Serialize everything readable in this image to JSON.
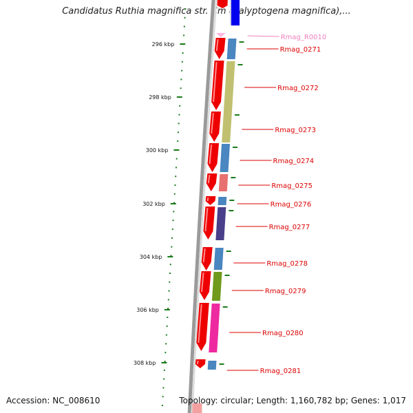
{
  "title": "Candidatus Ruthia magnifica str. Cm (Calyptogena magnifica),...",
  "footer": {
    "accession": "Accession: NC_008610",
    "info": "Topology: circular; Length: 1,160,782 bp; Genes: 1,017"
  },
  "colors": {
    "forward_arrow": "#ee0000",
    "rna_arrow": "#ffb6e0",
    "label_red": "#dd0000",
    "label_pink": "#f07fc0",
    "tick_green": "#1a7a1a",
    "backbone": "#888888"
  },
  "ruler_ticks": [
    {
      "label": "296 kbp"
    },
    {
      "label": "298 kbp"
    },
    {
      "label": "300 kbp"
    },
    {
      "label": "302 kbp"
    },
    {
      "label": "304 kbp"
    },
    {
      "label": "306 kbp"
    },
    {
      "label": "308 kbp"
    }
  ],
  "genes": [
    {
      "name": "Rmag_R0010",
      "kind": "rna",
      "cog_color": "#ffffff"
    },
    {
      "name": "Rmag_0271",
      "kind": "cds",
      "cog_color": "#4a86c0"
    },
    {
      "name": "Rmag_0272",
      "kind": "cds",
      "cog_color": "#c0c070"
    },
    {
      "name": "Rmag_0273",
      "kind": "cds",
      "cog_color": "#c0c070"
    },
    {
      "name": "Rmag_0274",
      "kind": "cds",
      "cog_color": "#4a86c0"
    },
    {
      "name": "Rmag_0275",
      "kind": "cds",
      "cog_color": "#e87070"
    },
    {
      "name": "Rmag_0276",
      "kind": "cds",
      "cog_color": "#4a86c0"
    },
    {
      "name": "Rmag_0277",
      "kind": "cds",
      "cog_color": "#4a3f8a"
    },
    {
      "name": "Rmag_0278",
      "kind": "cds",
      "cog_color": "#4a86c0"
    },
    {
      "name": "Rmag_0279",
      "kind": "cds",
      "cog_color": "#6f9a1c"
    },
    {
      "name": "Rmag_0280",
      "kind": "cds",
      "cog_color": "#ee2aa0"
    },
    {
      "name": "Rmag_0281",
      "kind": "cds",
      "cog_color": "#4a86c0"
    }
  ]
}
